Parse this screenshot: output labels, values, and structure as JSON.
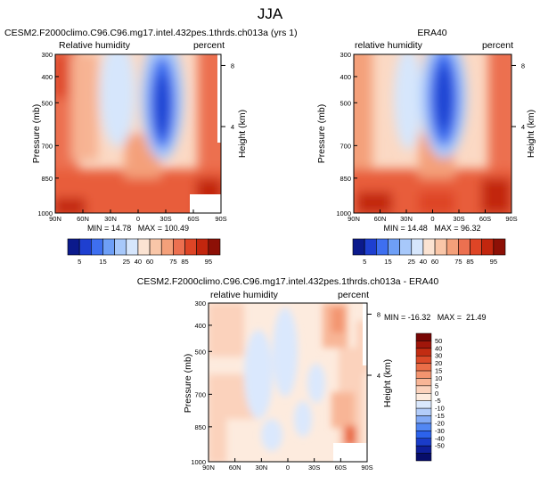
{
  "page_title": "JJA",
  "colors": {
    "palette_a": [
      "#0b1a8c",
      "#1e3fd0",
      "#3e6ff0",
      "#6e9ff6",
      "#a7c8fa",
      "#d6e6fc",
      "#fbe3d2",
      "#f9c6a8",
      "#f4a07a",
      "#ec7050",
      "#de4526",
      "#c2260e",
      "#8d1006"
    ],
    "palette_b": [
      "#070d6a",
      "#0f1f9a",
      "#1a3cc9",
      "#2c62eb",
      "#5287f3",
      "#82aaf6",
      "#b3cdfa",
      "#dae8fd",
      "#fdebde",
      "#fbd2bc",
      "#f8b596",
      "#f3946f",
      "#ea6e48",
      "#db4a29",
      "#c22c12",
      "#a0160a",
      "#780604"
    ]
  },
  "chart_data": [
    {
      "type": "heatmap",
      "title": "CESM2.F2000climo.C96.C96.mg17.intel.432pes.1thrds.ch013a (yrs 1)",
      "left_label": "Relative humidity",
      "right_label": "percent",
      "ylabel": "Pressure (mb)",
      "y2label": "Height (km)",
      "x_ticks": [
        "90N",
        "60N",
        "30N",
        "0",
        "30S",
        "60S",
        "90S"
      ],
      "y_ticks": [
        "300",
        "400",
        "500",
        "700",
        "850",
        "1000"
      ],
      "y2_ticks": [
        "8",
        "4"
      ],
      "stats": "MIN = 14.78   MAX = 100.49",
      "colorbar_labels": [
        "5",
        "15",
        "25",
        "40",
        "60",
        "75",
        "85",
        "95"
      ],
      "xlim": [
        90,
        -90
      ],
      "ylim": [
        1000,
        300
      ],
      "features": [
        {
          "x": 15,
          "p": 480,
          "value": 15
        },
        {
          "x": -20,
          "p": 520,
          "value": 15
        }
      ]
    },
    {
      "type": "heatmap",
      "title": "ERA40",
      "left_label": "relative humidity",
      "right_label": "percent",
      "ylabel": "Pressure (mb)",
      "y2label": "Height (km)",
      "x_ticks": [
        "90N",
        "60N",
        "30N",
        "0",
        "30S",
        "60S",
        "90S"
      ],
      "y_ticks": [
        "300",
        "400",
        "500",
        "700",
        "850",
        "1000"
      ],
      "y2_ticks": [
        "8",
        "4"
      ],
      "stats": "MIN = 14.48   MAX = 96.32",
      "colorbar_labels": [
        "5",
        "15",
        "25",
        "40",
        "60",
        "75",
        "85",
        "95"
      ],
      "xlim": [
        90,
        -90
      ],
      "ylim": [
        1000,
        300
      ]
    },
    {
      "type": "heatmap",
      "title": "CESM2.F2000climo.C96.C96.mg17.intel.432pes.1thrds.ch013a - ERA40",
      "left_label": "relative humidity",
      "right_label": "percent",
      "ylabel": "Pressure (mb)",
      "y2label": "Height (km)",
      "x_ticks": [
        "90N",
        "60N",
        "30N",
        "0",
        "30S",
        "60S",
        "90S"
      ],
      "y_ticks": [
        "300",
        "400",
        "500",
        "700",
        "850",
        "1000"
      ],
      "y2_ticks": [
        "8",
        "4"
      ],
      "stats": "MIN = -16.32   MAX =  21.49",
      "colorbar_labels": [
        "50",
        "40",
        "30",
        "20",
        "15",
        "10",
        "5",
        "0",
        "-5",
        "-10",
        "-15",
        "-20",
        "-30",
        "-40",
        "-50"
      ],
      "xlim": [
        90,
        -90
      ],
      "ylim": [
        1000,
        300
      ]
    }
  ]
}
